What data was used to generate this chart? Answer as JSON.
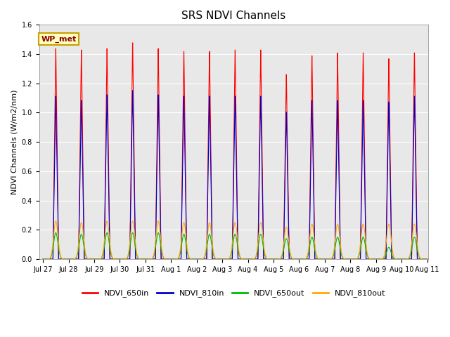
{
  "title": "SRS NDVI Channels",
  "ylabel": "NDVI Channels (W/m2/nm)",
  "annotation": "WP_met",
  "ylim": [
    0.0,
    1.6
  ],
  "background_color": "#e8e8e8",
  "colors": {
    "NDVI_650in": "#ff0000",
    "NDVI_810in": "#0000cc",
    "NDVI_650out": "#00bb00",
    "NDVI_810out": "#ffaa00"
  },
  "tick_labels": [
    "Jul 27",
    "Jul 28",
    "Jul 29",
    "Jul 30",
    "Jul 31",
    "Aug 1",
    "Aug 2",
    "Aug 3",
    "Aug 4",
    "Aug 5",
    "Aug 6",
    "Aug 7",
    "Aug 8",
    "Aug 9",
    "Aug 10",
    "Aug 11"
  ],
  "peak_650in": [
    1.46,
    1.45,
    1.46,
    1.5,
    1.46,
    1.44,
    1.44,
    1.45,
    1.45,
    1.28,
    1.41,
    1.43,
    1.43,
    1.39,
    1.43
  ],
  "peak_810in": [
    1.13,
    1.1,
    1.14,
    1.17,
    1.14,
    1.13,
    1.13,
    1.13,
    1.13,
    1.02,
    1.1,
    1.1,
    1.1,
    1.09,
    1.13
  ],
  "peak_650out": [
    0.18,
    0.17,
    0.18,
    0.18,
    0.18,
    0.17,
    0.17,
    0.17,
    0.17,
    0.14,
    0.15,
    0.15,
    0.15,
    0.08,
    0.15
  ],
  "peak_810out": [
    0.26,
    0.25,
    0.26,
    0.26,
    0.26,
    0.25,
    0.25,
    0.25,
    0.25,
    0.22,
    0.24,
    0.24,
    0.24,
    0.24,
    0.24
  ],
  "yticks": [
    0.0,
    0.2,
    0.4,
    0.6,
    0.8,
    1.0,
    1.2,
    1.4,
    1.6
  ],
  "title_fontsize": 11,
  "ylabel_fontsize": 8,
  "tick_fontsize": 7,
  "legend_fontsize": 8
}
